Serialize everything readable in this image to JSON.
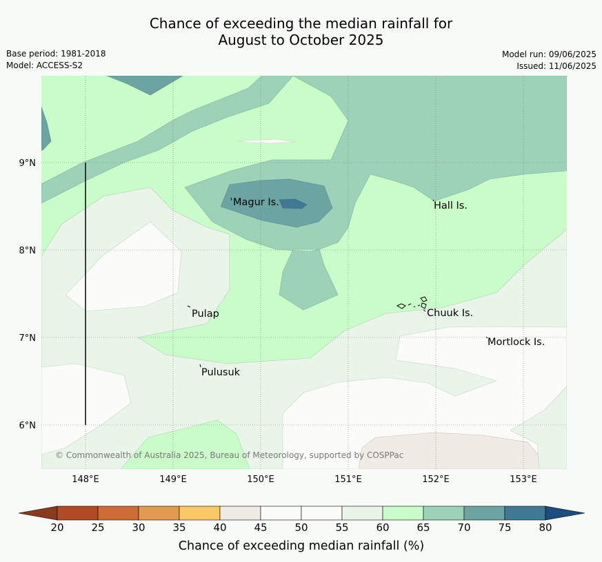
{
  "title": {
    "line1": "Chance of exceeding the median rainfall for",
    "line2": "August to October 2025"
  },
  "meta_left": {
    "base_period": "Base period: 1981-2018",
    "model": "Model: ACCESS-S2"
  },
  "meta_right": {
    "model_run": "Model run: 09/06/2025",
    "issued": "Issued: 11/06/2025"
  },
  "axes": {
    "x_ticks": [
      "148°E",
      "149°E",
      "150°E",
      "151°E",
      "152°E",
      "153°E"
    ],
    "y_ticks": [
      "9°N",
      "8°N",
      "7°N",
      "6°N"
    ]
  },
  "places": [
    "Magur Is.",
    "Hall Is.",
    "Pulap",
    "Chuuk Is.",
    "Mortlock Is.",
    "Pulusuk"
  ],
  "copyright": "© Commonwealth of Australia 2025, Bureau of Meteorology, supported by COSPPac",
  "colorbar": {
    "labels": [
      "20",
      "25",
      "30",
      "35",
      "40",
      "45",
      "50",
      "55",
      "60",
      "65",
      "70",
      "75",
      "80"
    ],
    "title": "Chance of exceeding median rainfall (%)",
    "colors": [
      "#8b3a1e",
      "#b34a26",
      "#cf6b34",
      "#e29a4e",
      "#fbc866",
      "#f0ebe4",
      "#fbfcfa",
      "#fbfcfa",
      "#eaf5ea",
      "#c9fcc9",
      "#9dd2b9",
      "#6ca3a3",
      "#417894",
      "#1b4d80"
    ]
  }
}
